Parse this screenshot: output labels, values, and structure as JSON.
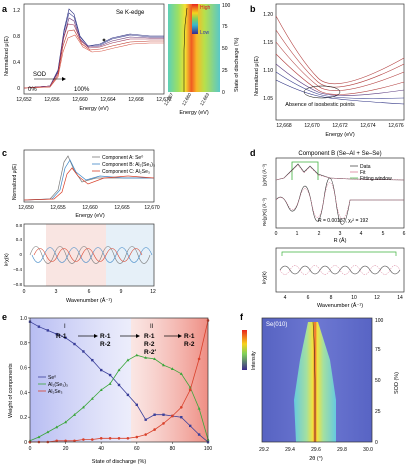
{
  "panels": {
    "a": {
      "label": "a",
      "title": "Se K-edge",
      "ylabel": "Normalized μ(E)",
      "xlabel": "Energy (eV)",
      "x_ticks": [
        "12,652",
        "12,656",
        "12,660",
        "12,664",
        "12,668",
        "12,672"
      ],
      "y_ticks": [
        "0",
        "0.4",
        "0.8",
        "1.2"
      ],
      "sod_label": "SOD",
      "sod_start": "0%",
      "sod_end": "100%"
    },
    "a_map": {
      "colorbar_high": "High",
      "colorbar_low": "Low",
      "ylabel": "State of discharge (%)",
      "xlabel": "Energy (eV)",
      "x_ticks": [
        "12,657",
        "12,660",
        "12,663"
      ],
      "y_ticks": [
        "0",
        "25",
        "50",
        "75",
        "100"
      ]
    },
    "b": {
      "label": "b",
      "ylabel": "Normalized μ(E)",
      "xlabel": "Energy (eV)",
      "x_ticks": [
        "12,668",
        "12,670",
        "12,672",
        "12,674",
        "12,676"
      ],
      "y_ticks": [
        "1.05",
        "1.10",
        "1.15",
        "1.20"
      ],
      "annotation": "Absence of isosbestic points"
    },
    "c": {
      "label": "c",
      "top_ylabel": "Normalized μ(E)",
      "top_xlabel": "Energy (eV)",
      "top_x_ticks": [
        "12,650",
        "12,655",
        "12,660",
        "12,665",
        "12,670"
      ],
      "legend": [
        "Component A: Se⁰",
        "Component B: Al₂(Se₃)₃",
        "Component C: Al₂Se₃"
      ],
      "bottom_ylabel": "k²χ(k)",
      "bottom_xlabel": "Wavenumber (Å⁻¹)",
      "bottom_x_ticks": [
        "0",
        "3",
        "6",
        "9",
        "12"
      ],
      "bottom_y_ticks": [
        "−0.8",
        "−0.4",
        "0",
        "0.4",
        "0.8"
      ]
    },
    "d": {
      "label": "d",
      "title": "Component B (Se–Al + Se–Se)",
      "top_ylabel1": "|χ(R)| (Å⁻³)",
      "top_ylabel2": "Re[χ(R)] (Å⁻³)",
      "top_xlabel": "R (Å)",
      "top_x_ticks": [
        "0",
        "1",
        "2",
        "3",
        "4",
        "5",
        "6"
      ],
      "legend": [
        "Data",
        "Fit",
        "Fitting window"
      ],
      "stats": "R = 0.00187, χᵥ² = 192",
      "bottom_ylabel": "k²χ(k)",
      "bottom_xlabel": "Wavenumber (Å⁻¹)",
      "bottom_x_ticks": [
        "4",
        "6",
        "8",
        "10",
        "12",
        "14"
      ]
    },
    "e": {
      "label": "e",
      "ylabel": "Weight of components",
      "xlabel": "State of discharge (%)",
      "x_ticks": [
        "0",
        "20",
        "40",
        "60",
        "80",
        "100"
      ],
      "y_ticks": [
        "0",
        "0.2",
        "0.4",
        "0.6",
        "0.8",
        "1.0"
      ],
      "stage_I": "I",
      "stage_II": "II",
      "reactions": [
        [
          "R-1"
        ],
        [
          "R-1",
          "R-2"
        ],
        [
          "R-1",
          "R-2",
          "R-2′"
        ],
        [
          "R-1",
          "R-2"
        ]
      ],
      "legend": [
        "Se⁰",
        "Al₂(Se₃)₃",
        "Al₂Se₃"
      ]
    },
    "f": {
      "label": "f",
      "title": "Se(010)",
      "intensity": "Intensity",
      "ylabel": "SOD (%)",
      "xlabel": "2θ (°)",
      "x_ticks": [
        "29.2",
        "29.4",
        "29.6",
        "29.8",
        "30.0"
      ],
      "y_ticks": [
        "0",
        "25",
        "50",
        "75",
        "100"
      ]
    }
  },
  "colors": {
    "se0": "#3a3f9a",
    "al2se33": "#3aa63a",
    "al2se3": "#d9412b",
    "compA": "#7a7a7a",
    "compB": "#3d86c6",
    "compC": "#d9412b",
    "fit": "#d46a8a",
    "window": "#3fb23f"
  },
  "chart_data": {
    "type": "line",
    "x": [
      0,
      5,
      10,
      15,
      20,
      25,
      30,
      35,
      40,
      45,
      50,
      55,
      60,
      65,
      70,
      75,
      80,
      85,
      90,
      95,
      100
    ],
    "xlabel": "State of discharge (%)",
    "ylabel": "Weight of components",
    "xlim": [
      0,
      100
    ],
    "ylim": [
      0,
      1.0
    ],
    "series": [
      {
        "name": "Se⁰",
        "color": "#3a3f9a",
        "values": [
          0.97,
          0.93,
          0.9,
          0.87,
          0.84,
          0.79,
          0.73,
          0.66,
          0.58,
          0.54,
          0.46,
          0.38,
          0.3,
          0.18,
          0.22,
          0.22,
          0.21,
          0.2,
          0.13,
          0.06,
          0.0
        ]
      },
      {
        "name": "Al₂(Se₃)₃",
        "color": "#3aa63a",
        "values": [
          0.01,
          0.04,
          0.08,
          0.12,
          0.16,
          0.22,
          0.28,
          0.35,
          0.42,
          0.47,
          0.58,
          0.66,
          0.7,
          0.68,
          0.67,
          0.62,
          0.59,
          0.55,
          0.44,
          0.27,
          0.02
        ]
      },
      {
        "name": "Al₂Se₃",
        "color": "#d9412b",
        "values": [
          0.0,
          0.0,
          0.0,
          0.01,
          0.01,
          0.01,
          0.02,
          0.02,
          0.03,
          0.03,
          0.03,
          0.03,
          0.04,
          0.06,
          0.1,
          0.15,
          0.21,
          0.28,
          0.42,
          0.67,
          0.98
        ]
      }
    ]
  }
}
